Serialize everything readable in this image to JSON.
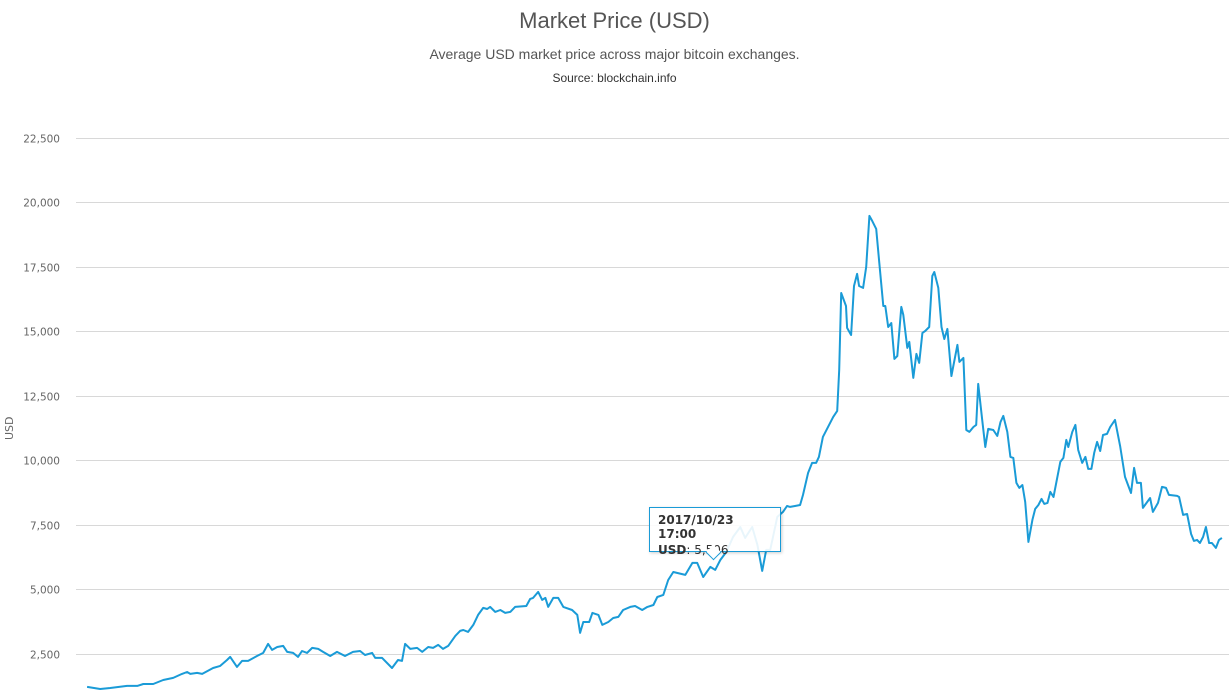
{
  "chart_data": {
    "type": "line",
    "title": "Market Price (USD)",
    "subtitle": "Average USD market price across major bitcoin exchanges.",
    "source": "Source: blockchain.info",
    "xlabel": "",
    "ylabel": "USD",
    "x_unit": "days since start of visible series (approx. 2017-03-18)",
    "xlim": [
      -3.9,
      400.7
    ],
    "ylim": [
      870,
      23100
    ],
    "y_ticks": [
      2500,
      5000,
      7500,
      10000,
      12500,
      15000,
      17500,
      20000,
      22500
    ],
    "y_tick_labels": [
      "2,500",
      "5,000",
      "7,500",
      "10,000",
      "12,500",
      "15,000",
      "17,500",
      "20,000",
      "22,500"
    ],
    "grid": true,
    "legend": "none",
    "line_color": "#1a9bd7",
    "series": [
      {
        "name": "USD",
        "x": [
          0,
          4.6,
          8.1,
          14.0,
          17.6,
          19.7,
          23.2,
          26.7,
          30.2,
          33.3,
          35.1,
          36.2,
          38.6,
          40.4,
          44.2,
          46.7,
          49.1,
          50.2,
          52.6,
          54.4,
          56.5,
          59.6,
          61.8,
          63.5,
          64.9,
          66.7,
          68.8,
          70.2,
          72.3,
          74.0,
          75.4,
          77.2,
          79.0,
          81.1,
          82.8,
          85.3,
          87.7,
          90.5,
          93.3,
          95.8,
          97.5,
          100.0,
          101.1,
          103.5,
          107.0,
          109.1,
          110.5,
          111.6,
          113.4,
          115.8,
          117.6,
          119.7,
          121.4,
          123.2,
          124.9,
          126.7,
          129.2,
          130.9,
          132.0,
          133.7,
          135.5,
          137.2,
          139.0,
          140.4,
          141.4,
          143.2,
          145.0,
          146.7,
          148.5,
          150.2,
          154.1,
          155.5,
          156.5,
          158.3,
          159.7,
          160.8,
          161.8,
          163.6,
          165.3,
          167.1,
          170.2,
          172.0,
          173.0,
          174.1,
          176.2,
          177.3,
          179.4,
          180.8,
          182.9,
          184.6,
          186.4,
          188.1,
          190.6,
          192.3,
          194.8,
          196.6,
          198.7,
          200.1,
          202.2,
          203.9,
          205.7,
          209.9,
          212.4,
          214.1,
          216.2,
          218.7,
          220.4,
          222.2,
          224.3,
          226.7,
          229.2,
          230.9,
          233.4,
          235.2,
          236.9,
          238.3,
          239.7,
          242.2,
          244.2,
          245.6,
          246.7,
          248.4,
          250.2,
          251.2,
          253.0,
          254.4,
          255.8,
          256.8,
          258.2,
          261.8,
          263.2,
          263.9,
          264.6,
          266.3,
          266.7,
          268.1,
          269.1,
          270.2,
          270.9,
          272.3,
          273.4,
          274.5,
          275.5,
          276.9,
          278.0,
          279.4,
          280.1,
          281.1,
          282.2,
          283.3,
          284.3,
          285.7,
          286.4,
          287.8,
          288.5,
          289.9,
          291.0,
          292.0,
          293.1,
          294.1,
          295.5,
          296.6,
          297.3,
          298.7,
          299.8,
          300.8,
          301.9,
          303.3,
          305.4,
          306.1,
          307.5,
          308.5,
          309.6,
          311.0,
          312.0,
          312.7,
          314.1,
          315.2,
          316.2,
          318.0,
          319.4,
          320.5,
          321.5,
          322.9,
          324.0,
          325.0,
          326.1,
          327.1,
          328.2,
          329.2,
          330.3,
          331.7,
          332.7,
          333.8,
          334.9,
          335.9,
          337.0,
          338.0,
          339.1,
          341.5,
          342.6,
          343.6,
          344.3,
          345.7,
          346.8,
          347.8,
          349.2,
          350.3,
          351.3,
          352.4,
          353.4,
          354.4,
          355.5,
          356.5,
          357.9,
          359.0,
          360.7,
          362.5,
          364.2,
          366.3,
          367.4,
          368.4,
          369.8,
          370.5,
          373.0,
          374.0,
          375.8,
          377.2,
          378.6,
          379.6,
          382.5,
          383.2,
          384.6,
          386.0,
          387.4,
          388.4,
          389.5,
          390.5,
          391.6,
          392.6,
          393.7,
          394.7,
          396.1,
          397.2,
          398.2
        ],
        "values": [
          1221,
          1143,
          1182,
          1260,
          1260,
          1337,
          1337,
          1492,
          1570,
          1725,
          1802,
          1725,
          1764,
          1725,
          1957,
          2035,
          2267,
          2384,
          1996,
          2229,
          2229,
          2422,
          2539,
          2888,
          2655,
          2771,
          2810,
          2578,
          2539,
          2384,
          2616,
          2539,
          2733,
          2694,
          2578,
          2422,
          2578,
          2422,
          2578,
          2616,
          2461,
          2539,
          2345,
          2345,
          1957,
          2267,
          2229,
          2888,
          2694,
          2733,
          2578,
          2771,
          2733,
          2849,
          2694,
          2810,
          3198,
          3392,
          3430,
          3353,
          3624,
          4012,
          4283,
          4244,
          4322,
          4128,
          4205,
          4089,
          4128,
          4322,
          4360,
          4632,
          4671,
          4903,
          4593,
          4671,
          4322,
          4671,
          4671,
          4322,
          4205,
          4012,
          3314,
          3740,
          3740,
          4089,
          4012,
          3624,
          3740,
          3895,
          3934,
          4205,
          4322,
          4360,
          4205,
          4322,
          4399,
          4709,
          4787,
          5368,
          5678,
          5562,
          6027,
          6027,
          5484,
          5872,
          5756,
          6143,
          6453,
          7035,
          7422,
          6996,
          7422,
          6725,
          5717,
          6531,
          6531,
          7810,
          8004,
          8236,
          8198,
          8236,
          8275,
          8663,
          9516,
          9903,
          9903,
          10136,
          10911,
          11686,
          11919,
          13508,
          16492,
          15988,
          15136,
          14864,
          16763,
          17229,
          16763,
          16686,
          17500,
          19477,
          19283,
          18973,
          17655,
          15988,
          15988,
          15174,
          15329,
          13934,
          14050,
          15950,
          15640,
          14361,
          14593,
          13198,
          14128,
          13779,
          14942,
          15019,
          15174,
          17151,
          17306,
          16686,
          15174,
          14709,
          15097,
          13275,
          14477,
          13818,
          13973,
          11182,
          11105,
          11298,
          11376,
          12965,
          11570,
          10523,
          11221,
          11182,
          10950,
          11492,
          11725,
          11105,
          10136,
          10097,
          9128,
          8934,
          9050,
          8392,
          6841,
          7694,
          8120,
          8275,
          8508,
          8314,
          8353,
          8779,
          8585,
          9942,
          10097,
          10795,
          10523,
          11105,
          11376,
          10407,
          9903,
          10136,
          9671,
          9671,
          10291,
          10717,
          10368,
          10988,
          11027,
          11298,
          11570,
          10562,
          9361,
          8740,
          9710,
          9128,
          9128,
          8159,
          8546,
          8004,
          8353,
          8973,
          8934,
          8663,
          8624,
          8585,
          7888,
          7926,
          7151,
          6880,
          6919,
          6802,
          7035,
          7422,
          6802,
          6802,
          6609,
          6919,
          6996
        ]
      }
    ],
    "tooltip": {
      "date": "2017/10/23 17:00",
      "series_label": "USD",
      "value_text": ": 5,506"
    }
  }
}
